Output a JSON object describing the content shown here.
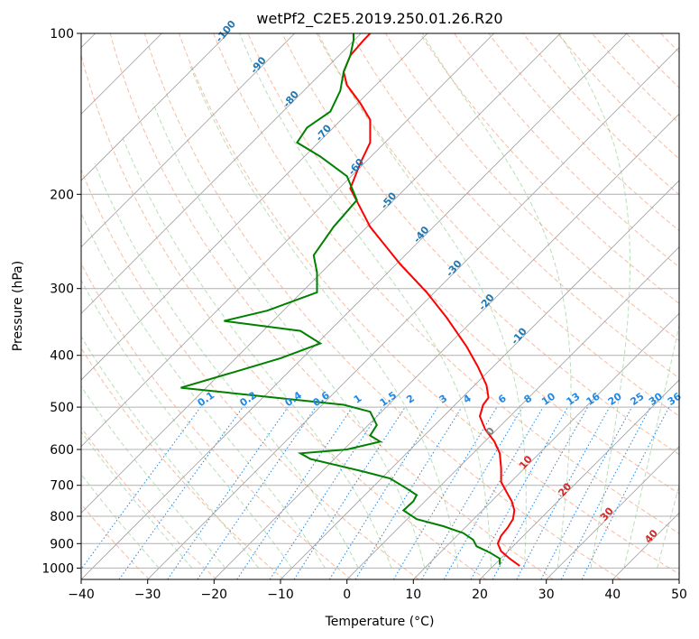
{
  "chart_data": {
    "type": "line",
    "title": "wetPf2_C2E5.2019.250.01.26.R20",
    "xlabel": "Temperature (°C)",
    "ylabel": "Pressure (hPa)",
    "xlim": [
      -40,
      50
    ],
    "ylim": [
      1050,
      100
    ],
    "y_scale": "log",
    "grid": true,
    "x_ticks": [
      -40,
      -30,
      -20,
      -10,
      0,
      10,
      20,
      30,
      40,
      50
    ],
    "x_tick_labels": [
      "−40",
      "−30",
      "−20",
      "−10",
      "0",
      "10",
      "20",
      "30",
      "40",
      "50"
    ],
    "y_ticks": [
      1000,
      900,
      800,
      700,
      600,
      500,
      400,
      300,
      200,
      100
    ],
    "y_tick_labels": [
      "1000",
      "900",
      "800",
      "700",
      "600",
      "500",
      "400",
      "300",
      "200",
      "100"
    ],
    "series": [
      {
        "color": "#ff0000",
        "points": [
          [
            26.0,
            990
          ],
          [
            24.5,
            960
          ],
          [
            23.2,
            930
          ],
          [
            22.7,
            900
          ],
          [
            23.2,
            870
          ],
          [
            24.2,
            840
          ],
          [
            25.0,
            810
          ],
          [
            25.2,
            780
          ],
          [
            24.8,
            750
          ],
          [
            24.0,
            720
          ],
          [
            23.2,
            690
          ],
          [
            23.2,
            650
          ],
          [
            23.0,
            610
          ],
          [
            22.2,
            580
          ],
          [
            20.8,
            550
          ],
          [
            20.0,
            520
          ],
          [
            20.5,
            495
          ],
          [
            21.3,
            480
          ],
          [
            21.0,
            455
          ],
          [
            19.7,
            420
          ],
          [
            18.0,
            385
          ],
          [
            15.0,
            340
          ],
          [
            12.0,
            305
          ],
          [
            8.0,
            270
          ],
          [
            3.5,
            230
          ],
          [
            0.5,
            195
          ],
          [
            2.0,
            175
          ],
          [
            3.5,
            160
          ],
          [
            3.5,
            145
          ],
          [
            2.0,
            135
          ],
          [
            0.0,
            125
          ],
          [
            -0.5,
            118
          ],
          [
            0.5,
            110
          ],
          [
            2.5,
            103
          ],
          [
            3.5,
            100
          ]
        ]
      },
      {
        "color": "#008000",
        "points": [
          [
            23.0,
            985
          ],
          [
            23.0,
            960
          ],
          [
            21.5,
            935
          ],
          [
            19.5,
            910
          ],
          [
            19.0,
            885
          ],
          [
            17.5,
            860
          ],
          [
            14.5,
            835
          ],
          [
            10.5,
            810
          ],
          [
            8.5,
            780
          ],
          [
            10.0,
            750
          ],
          [
            10.5,
            730
          ],
          [
            9.0,
            710
          ],
          [
            6.5,
            680
          ],
          [
            2.5,
            660
          ],
          [
            -5.5,
            625
          ],
          [
            -7.0,
            610
          ],
          [
            0.0,
            600
          ],
          [
            5.0,
            580
          ],
          [
            3.5,
            565
          ],
          [
            4.5,
            540
          ],
          [
            3.5,
            510
          ],
          [
            -0.5,
            495
          ],
          [
            -25.0,
            460
          ],
          [
            -17.0,
            430
          ],
          [
            -10.0,
            405
          ],
          [
            -4.0,
            380
          ],
          [
            -7.0,
            360
          ],
          [
            -18.5,
            345
          ],
          [
            -12.0,
            330
          ],
          [
            -4.5,
            305
          ],
          [
            -4.5,
            280
          ],
          [
            -5.0,
            260
          ],
          [
            -2.0,
            230
          ],
          [
            1.5,
            205
          ],
          [
            0.0,
            185
          ],
          [
            -4.0,
            170
          ],
          [
            -7.5,
            160
          ],
          [
            -6.0,
            150
          ],
          [
            -2.5,
            140
          ],
          [
            -1.0,
            128
          ],
          [
            -0.5,
            118
          ],
          [
            0.5,
            110
          ],
          [
            1.0,
            103
          ],
          [
            1.0,
            100
          ]
        ]
      }
    ],
    "dry_adiabat_labels": [
      "-100",
      "-90",
      "-80",
      "-70",
      "-60",
      "-50",
      "-40",
      "-30",
      "-20",
      "-10",
      "0",
      "10",
      "20",
      "30",
      "40"
    ],
    "mixing_ratio_labels": [
      "0.1",
      "0.2",
      "0.4",
      "0.6",
      "1",
      "1.5",
      "2",
      "3",
      "4",
      "6",
      "8",
      "10",
      "13",
      "16",
      "20",
      "25",
      "30",
      "36"
    ]
  }
}
